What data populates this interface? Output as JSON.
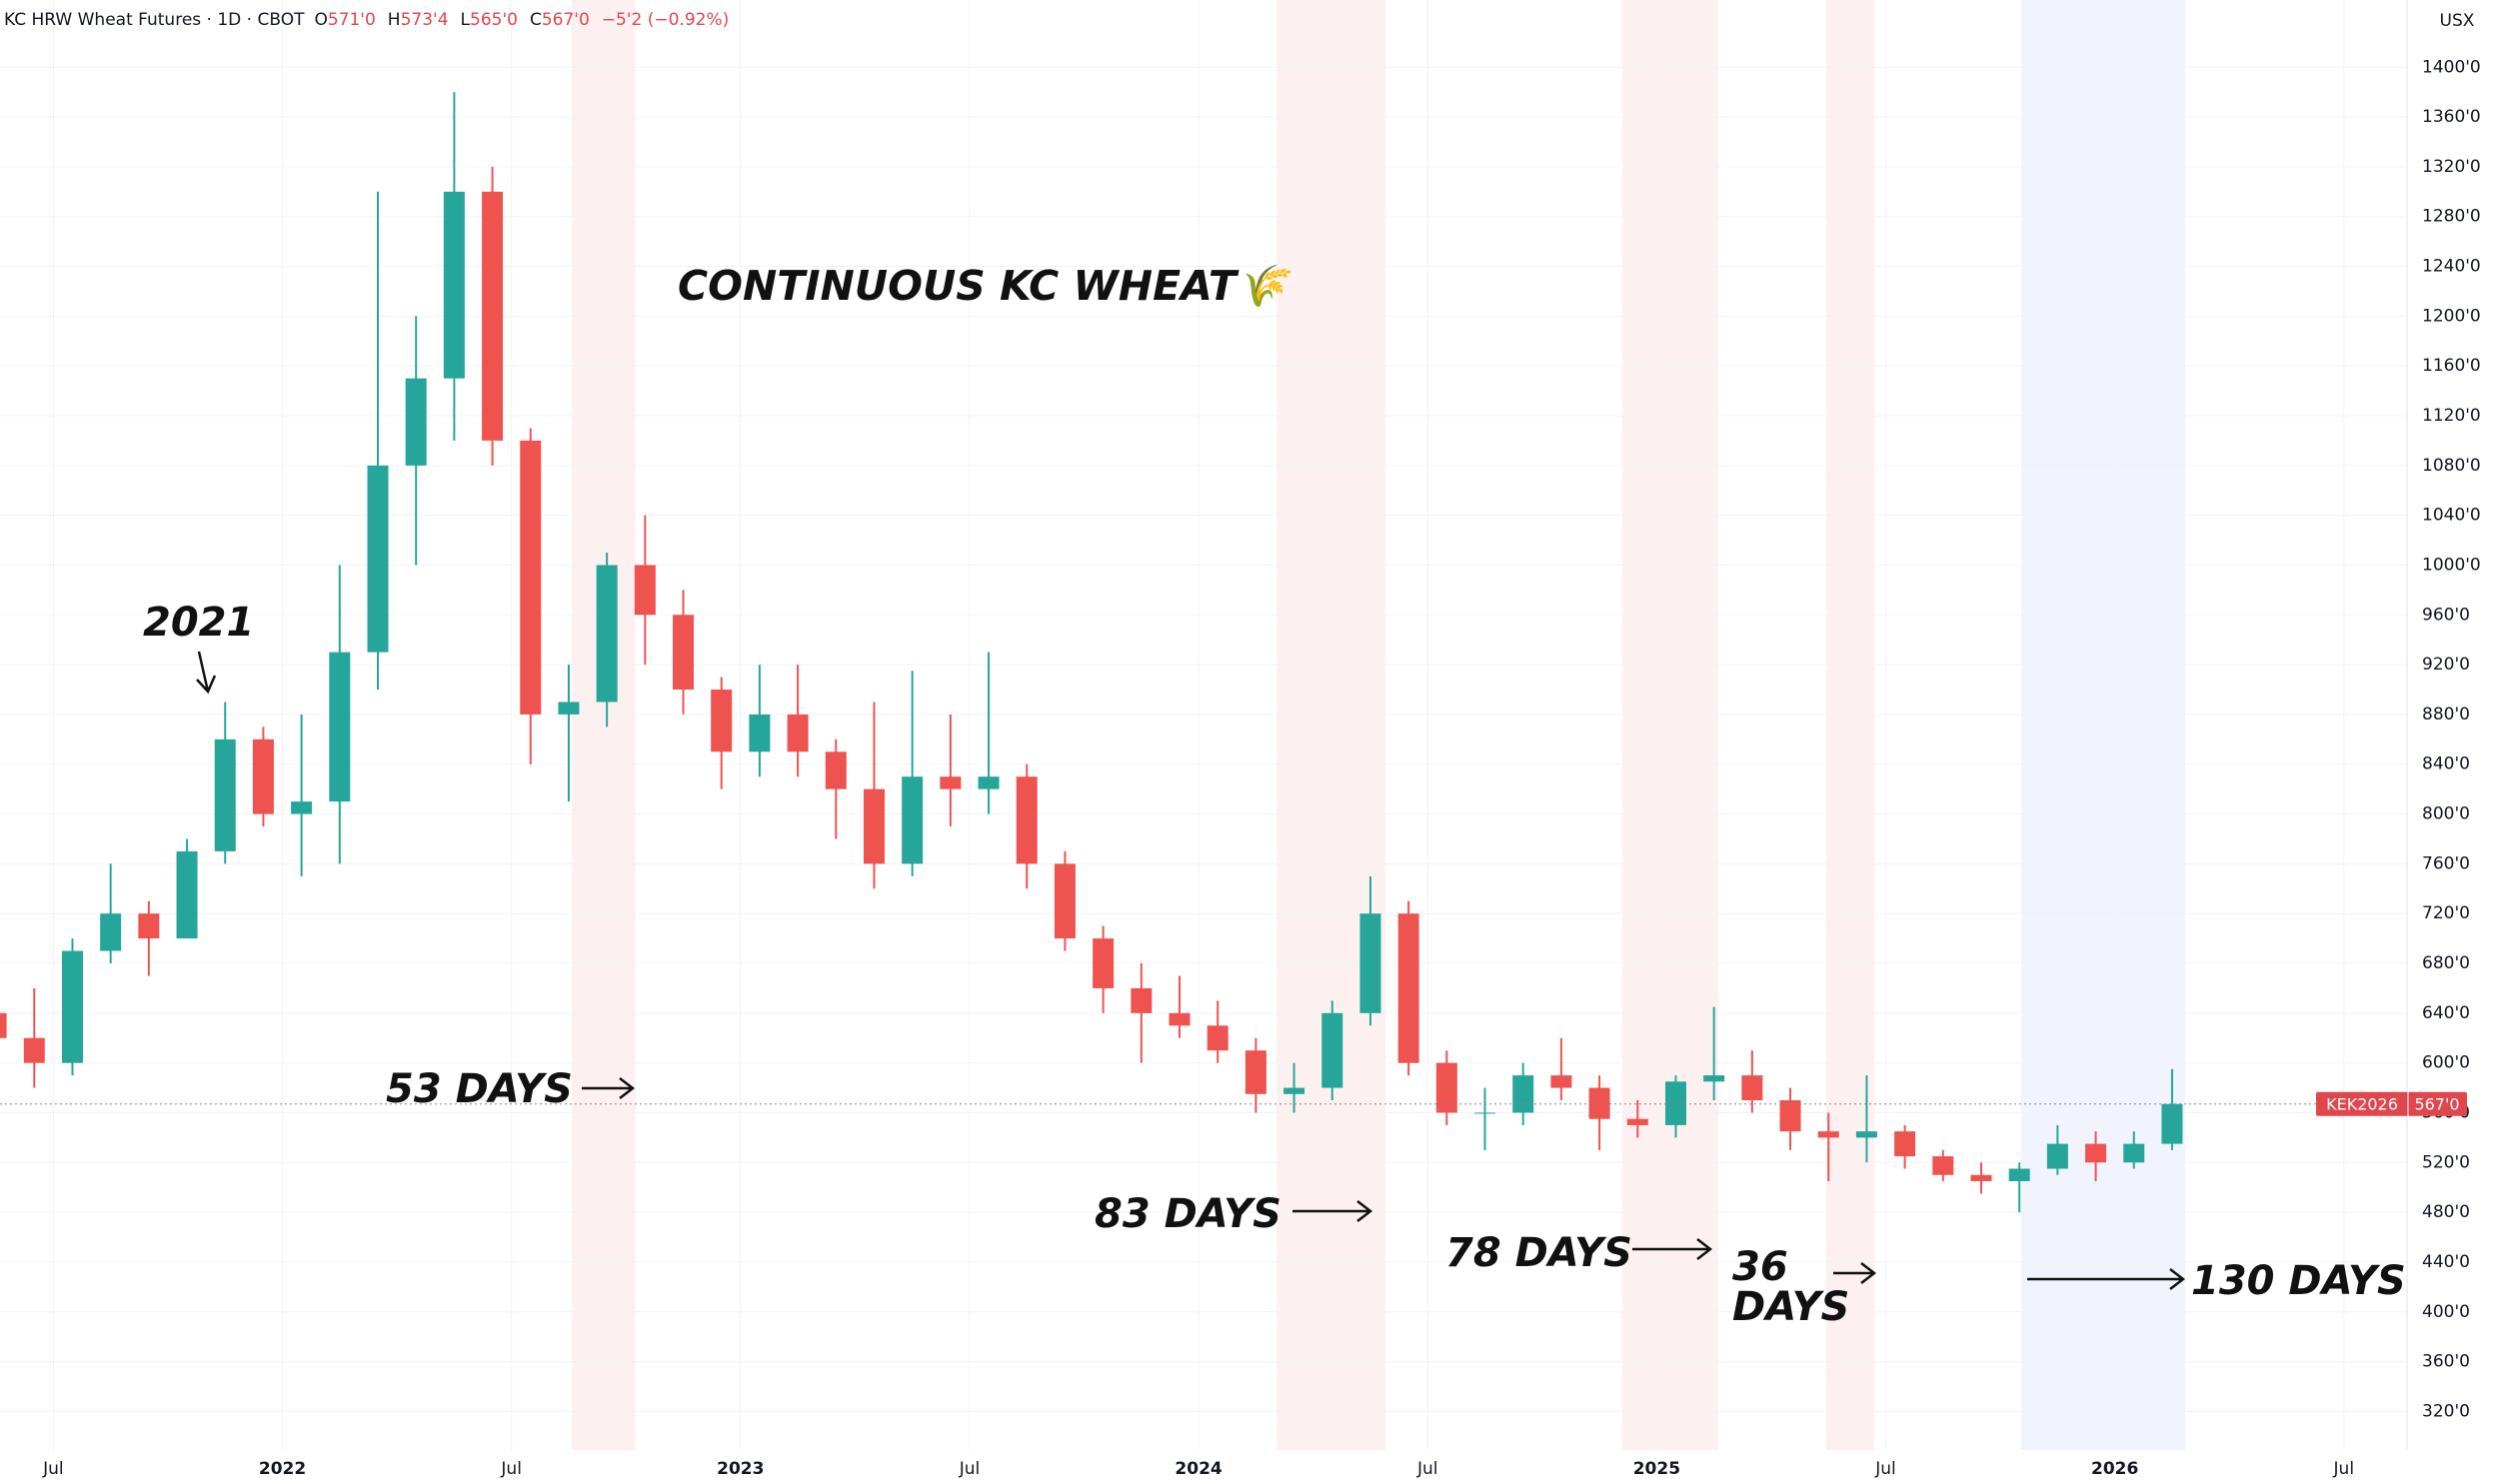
{
  "header": {
    "symbol": "KC HRW Wheat Futures · 1D · CBOT",
    "ohlc": [
      {
        "key": "O",
        "value": "571'0"
      },
      {
        "key": "H",
        "value": "573'4"
      },
      {
        "key": "L",
        "value": "565'0"
      },
      {
        "key": "C",
        "value": "567'0"
      }
    ],
    "change": "−5'2 (−0.92%)",
    "currency": "USX"
  },
  "chart_data": {
    "type": "candlestick",
    "title": "CONTINUOUS KC WHEAT🌾",
    "x": [
      "2021-05",
      "2021-06",
      "2021-07",
      "2021-08",
      "2021-09",
      "2021-10",
      "2021-11",
      "2021-12",
      "2022-01",
      "2022-02",
      "2022-03",
      "2022-04",
      "2022-05",
      "2022-06",
      "2022-07",
      "2022-08",
      "2022-09",
      "2022-10",
      "2022-11",
      "2022-12",
      "2023-01",
      "2023-02",
      "2023-03",
      "2023-04",
      "2023-05",
      "2023-06",
      "2023-07",
      "2023-08",
      "2023-09",
      "2023-10",
      "2023-11",
      "2023-12",
      "2024-01",
      "2024-02",
      "2024-03",
      "2024-04",
      "2024-05",
      "2024-06",
      "2024-07",
      "2024-08",
      "2024-09",
      "2024-10",
      "2024-11",
      "2024-12",
      "2025-01",
      "2025-02",
      "2025-03",
      "2025-04",
      "2025-05",
      "2025-06",
      "2025-07",
      "2025-08",
      "2025-09",
      "2025-10",
      "2025-11",
      "2025-12",
      "2026-01",
      "2026-02"
    ],
    "open": [
      640,
      620,
      600,
      690,
      720,
      700,
      770,
      860,
      800,
      810,
      930,
      1080,
      1150,
      1300,
      1100,
      880,
      890,
      1000,
      960,
      900,
      850,
      880,
      850,
      820,
      760,
      830,
      820,
      830,
      760,
      700,
      660,
      640,
      630,
      610,
      575,
      580,
      640,
      720,
      600,
      560,
      560,
      590,
      580,
      555,
      550,
      585,
      590,
      570,
      545,
      540,
      545,
      525,
      510,
      505,
      515,
      535,
      520,
      535
    ],
    "high": [
      665,
      660,
      700,
      760,
      730,
      780,
      890,
      870,
      880,
      1000,
      1300,
      1200,
      1380,
      1320,
      1110,
      920,
      1010,
      1040,
      980,
      910,
      920,
      920,
      860,
      890,
      915,
      880,
      930,
      840,
      770,
      710,
      680,
      670,
      650,
      620,
      600,
      650,
      750,
      730,
      610,
      580,
      600,
      620,
      590,
      570,
      590,
      645,
      610,
      580,
      560,
      590,
      550,
      530,
      520,
      520,
      550,
      545,
      545,
      595
    ],
    "low": [
      610,
      580,
      590,
      680,
      670,
      700,
      760,
      790,
      750,
      760,
      900,
      1000,
      1100,
      1080,
      840,
      810,
      870,
      920,
      880,
      820,
      830,
      830,
      780,
      740,
      750,
      790,
      800,
      740,
      690,
      640,
      600,
      620,
      600,
      560,
      560,
      570,
      630,
      590,
      550,
      530,
      550,
      570,
      530,
      540,
      540,
      570,
      560,
      530,
      505,
      520,
      515,
      505,
      495,
      480,
      510,
      505,
      515,
      530
    ],
    "close": [
      620,
      600,
      690,
      720,
      700,
      770,
      860,
      800,
      810,
      930,
      1080,
      1150,
      1300,
      1100,
      880,
      890,
      1000,
      960,
      900,
      850,
      880,
      850,
      820,
      760,
      830,
      820,
      830,
      760,
      700,
      660,
      640,
      630,
      610,
      575,
      580,
      640,
      720,
      600,
      560,
      560,
      590,
      580,
      555,
      550,
      585,
      590,
      570,
      545,
      540,
      545,
      525,
      510,
      505,
      515,
      535,
      520,
      535,
      567
    ],
    "up_color": "#26a69a",
    "down_color": "#ef5350",
    "xlim": [
      "2021-05",
      "2026-08"
    ],
    "xticks": [
      {
        "value": "2021-07",
        "label": "Jul"
      },
      {
        "value": "2022-01",
        "label": "2022"
      },
      {
        "value": "2022-07",
        "label": "Jul"
      },
      {
        "value": "2023-01",
        "label": "2023"
      },
      {
        "value": "2023-07",
        "label": "Jul"
      },
      {
        "value": "2024-01",
        "label": "2024"
      },
      {
        "value": "2024-07",
        "label": "Jul"
      },
      {
        "value": "2025-01",
        "label": "2025"
      },
      {
        "value": "2025-07",
        "label": "Jul"
      },
      {
        "value": "2026-01",
        "label": "2026"
      },
      {
        "value": "2026-07",
        "label": "Jul"
      }
    ],
    "ylim": [
      289,
      1454
    ],
    "yticks": [
      {
        "value": 320,
        "label": "320'0"
      },
      {
        "value": 360,
        "label": "360'0"
      },
      {
        "value": 400,
        "label": "400'0"
      },
      {
        "value": 440,
        "label": "440'0"
      },
      {
        "value": 480,
        "label": "480'0"
      },
      {
        "value": 520,
        "label": "520'0"
      },
      {
        "value": 560,
        "label": "560'0"
      },
      {
        "value": 600,
        "label": "600'0"
      },
      {
        "value": 640,
        "label": "640'0"
      },
      {
        "value": 680,
        "label": "680'0"
      },
      {
        "value": 720,
        "label": "720'0"
      },
      {
        "value": 760,
        "label": "760'0"
      },
      {
        "value": 800,
        "label": "800'0"
      },
      {
        "value": 840,
        "label": "840'0"
      },
      {
        "value": 880,
        "label": "880'0"
      },
      {
        "value": 920,
        "label": "920'0"
      },
      {
        "value": 960,
        "label": "960'0"
      },
      {
        "value": 1000,
        "label": "1000'0"
      },
      {
        "value": 1040,
        "label": "1040'0"
      },
      {
        "value": 1080,
        "label": "1080'0"
      },
      {
        "value": 1120,
        "label": "1120'0"
      },
      {
        "value": 1160,
        "label": "1160'0"
      },
      {
        "value": 1200,
        "label": "1200'0"
      },
      {
        "value": 1240,
        "label": "1240'0"
      },
      {
        "value": 1280,
        "label": "1280'0"
      },
      {
        "value": 1320,
        "label": "1320'0"
      },
      {
        "value": 1360,
        "label": "1360'0"
      },
      {
        "value": 1400,
        "label": "1400'0"
      }
    ],
    "grid": true,
    "last_price": {
      "value": 567,
      "label": "567'0",
      "symbol": "KEK2026",
      "color": "#e0474c"
    },
    "annotations": [
      "2021",
      "53 DAYS",
      "83 DAYS",
      "78 DAYS",
      "36 DAYS",
      "130 DAYS"
    ]
  }
}
